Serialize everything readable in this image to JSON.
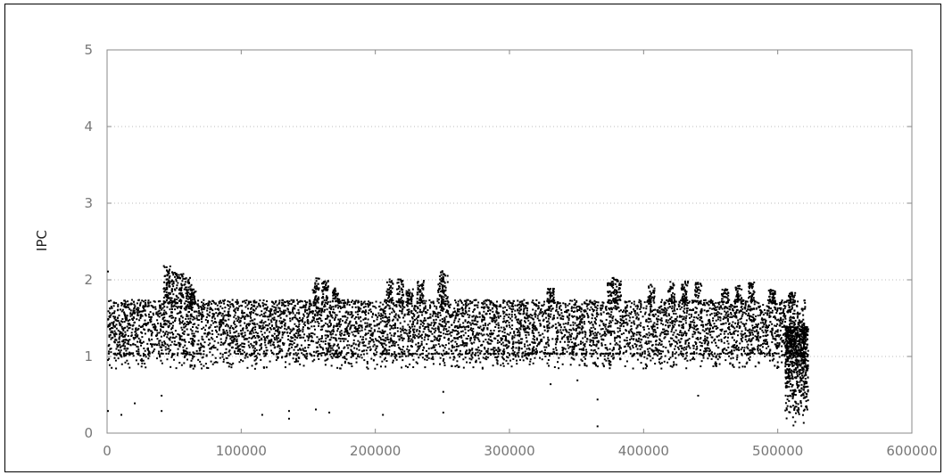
{
  "chart_data": {
    "type": "scatter",
    "title": "",
    "xlabel": "",
    "ylabel": "IPC",
    "xlim": [
      0,
      600000
    ],
    "ylim": [
      0,
      5
    ],
    "x_ticks": [
      "0",
      "100000",
      "200000",
      "300000",
      "400000",
      "500000",
      "600000"
    ],
    "y_ticks": [
      "0",
      "1",
      "2",
      "3",
      "4",
      "5"
    ],
    "grid": "horizontal dotted",
    "legend": "none",
    "colors": {
      "points": "#000000",
      "grid": "#bbbbbb",
      "axis": "#888888",
      "tick_text": "#777777"
    },
    "series": [
      {
        "density_bands": [
          {
            "x": [
              0,
              520000
            ],
            "y": [
              1.05,
              1.75
            ],
            "density": "dense"
          },
          {
            "x": [
              0,
              520000
            ],
            "y": [
              0.85,
              1.05
            ],
            "density": "sparse"
          },
          {
            "x": [
              505000,
              522000
            ],
            "y": [
              0.0,
              1.4
            ],
            "density": "moderate"
          }
        ],
        "spikes": [
          {
            "x": 44000,
            "y": 2.2
          },
          {
            "x": 46000,
            "y": 2.15
          },
          {
            "x": 50000,
            "y": 2.12
          },
          {
            "x": 55000,
            "y": 2.1
          },
          {
            "x": 60000,
            "y": 2.1
          },
          {
            "x": 63000,
            "y": 1.9
          },
          {
            "x": 155000,
            "y": 2.05
          },
          {
            "x": 162000,
            "y": 2.0
          },
          {
            "x": 170000,
            "y": 1.9
          },
          {
            "x": 210000,
            "y": 2.02
          },
          {
            "x": 218000,
            "y": 2.02
          },
          {
            "x": 225000,
            "y": 1.9
          },
          {
            "x": 233000,
            "y": 2.0
          },
          {
            "x": 248000,
            "y": 2.12
          },
          {
            "x": 251000,
            "y": 2.15
          },
          {
            "x": 330000,
            "y": 1.9
          },
          {
            "x": 375000,
            "y": 2.05
          },
          {
            "x": 380000,
            "y": 2.02
          },
          {
            "x": 405000,
            "y": 1.95
          },
          {
            "x": 420000,
            "y": 2.0
          },
          {
            "x": 430000,
            "y": 2.0
          },
          {
            "x": 440000,
            "y": 1.98
          },
          {
            "x": 460000,
            "y": 1.9
          },
          {
            "x": 470000,
            "y": 1.95
          },
          {
            "x": 480000,
            "y": 1.98
          },
          {
            "x": 495000,
            "y": 1.9
          },
          {
            "x": 510000,
            "y": 1.85
          }
        ],
        "outliers": [
          {
            "x": 0,
            "y": 2.12
          },
          {
            "x": 0,
            "y": 0.3
          },
          {
            "x": 10000,
            "y": 0.25
          },
          {
            "x": 20000,
            "y": 0.4
          },
          {
            "x": 40000,
            "y": 0.5
          },
          {
            "x": 40000,
            "y": 0.3
          },
          {
            "x": 115000,
            "y": 0.25
          },
          {
            "x": 135000,
            "y": 0.3
          },
          {
            "x": 135000,
            "y": 0.2
          },
          {
            "x": 155000,
            "y": 0.32
          },
          {
            "x": 165000,
            "y": 0.28
          },
          {
            "x": 205000,
            "y": 0.25
          },
          {
            "x": 250000,
            "y": 0.28
          },
          {
            "x": 250000,
            "y": 0.55
          },
          {
            "x": 365000,
            "y": 0.1
          },
          {
            "x": 365000,
            "y": 0.45
          },
          {
            "x": 330000,
            "y": 0.65
          },
          {
            "x": 350000,
            "y": 0.7
          },
          {
            "x": 440000,
            "y": 0.5
          }
        ]
      }
    ]
  }
}
